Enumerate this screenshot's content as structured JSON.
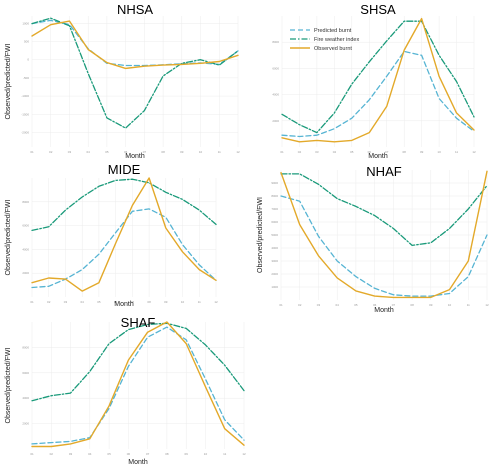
{
  "colors": {
    "predicted": "#56b4d3",
    "fwi": "#1a9a7a",
    "observed": "#e3a92a",
    "grid": "#ececec"
  },
  "chart_data": [
    {
      "type": "line",
      "title": "NHSA",
      "xlabel": "Month",
      "ylabel": "Observed/predicted/FWI",
      "x": [
        1,
        2,
        3,
        4,
        5,
        6,
        7,
        8,
        9,
        10,
        11,
        12
      ],
      "xticks": [
        "01",
        "02",
        "03",
        "04",
        "05",
        "06",
        "07",
        "08",
        "09",
        "10",
        "11",
        "12"
      ],
      "ylim": [
        -2400,
        1200
      ],
      "yticks": [
        "-2000",
        "-1500",
        "-1000",
        "-500",
        "0",
        "500",
        "1000"
      ],
      "grid": true,
      "series": [
        {
          "name": "Predicted burnt",
          "values": [
            990,
            1080,
            960,
            300,
            -100,
            -160,
            -160,
            -140,
            -110,
            -90,
            -130,
            240
          ]
        },
        {
          "name": "Fire weather index",
          "values": [
            990,
            1140,
            930,
            -380,
            -1600,
            -1880,
            -1400,
            -450,
            -100,
            0,
            -150,
            240
          ]
        },
        {
          "name": "Observed burnt",
          "values": [
            650,
            960,
            1060,
            280,
            -80,
            -240,
            -180,
            -150,
            -130,
            -100,
            -50,
            120
          ]
        }
      ]
    },
    {
      "type": "line",
      "title": "SHSA",
      "xlabel": "Month",
      "ylabel": "",
      "x": [
        1,
        2,
        3,
        4,
        5,
        6,
        7,
        8,
        9,
        10,
        11,
        12
      ],
      "xticks": [
        "01",
        "02",
        "03",
        "04",
        "05",
        "06",
        "07",
        "08",
        "09",
        "10",
        "11",
        "12"
      ],
      "ylim": [
        0,
        10000
      ],
      "yticks": [
        "2000",
        "4000",
        "6000",
        "8000"
      ],
      "grid": true,
      "legend": "top-left",
      "series": [
        {
          "name": "Predicted burnt",
          "values": [
            900,
            800,
            900,
            1400,
            2200,
            3600,
            5400,
            7300,
            7000,
            3700,
            2200,
            1200
          ]
        },
        {
          "name": "Fire weather index",
          "values": [
            2500,
            1700,
            1100,
            2600,
            4800,
            6500,
            8100,
            9600,
            9600,
            7000,
            5000,
            2300
          ]
        },
        {
          "name": "Observed burnt",
          "values": [
            700,
            400,
            500,
            400,
            500,
            1100,
            3100,
            7400,
            9800,
            5400,
            2600,
            1300
          ]
        }
      ]
    },
    {
      "type": "line",
      "title": "MIDE",
      "xlabel": "Month",
      "ylabel": "Observed/predicted/FWI",
      "x": [
        1,
        2,
        3,
        4,
        5,
        6,
        7,
        8,
        9,
        10,
        11,
        12
      ],
      "xticks": [
        "01",
        "02",
        "03",
        "04",
        "05",
        "06",
        "07",
        "08",
        "09",
        "10",
        "11",
        "12"
      ],
      "ylim": [
        0,
        10000
      ],
      "yticks": [
        "2000",
        "4000",
        "6000",
        "8000"
      ],
      "grid": true,
      "series": [
        {
          "name": "Predicted burnt",
          "values": [
            800,
            900,
            1500,
            2300,
            3600,
            5400,
            7200,
            7400,
            6700,
            4400,
            2700,
            1400
          ]
        },
        {
          "name": "Fire weather index",
          "values": [
            5600,
            5900,
            7300,
            8400,
            9300,
            9800,
            9900,
            9600,
            8800,
            8200,
            7300,
            6100
          ]
        },
        {
          "name": "Observed burnt",
          "values": [
            1200,
            1600,
            1500,
            500,
            1200,
            4500,
            7700,
            10000,
            5800,
            3800,
            2300,
            1400
          ]
        }
      ]
    },
    {
      "type": "line",
      "title": "NHAF",
      "xlabel": "Month",
      "ylabel": "Observed/predicted/FWI",
      "x": [
        1,
        2,
        3,
        4,
        5,
        6,
        7,
        8,
        9,
        10,
        11,
        12
      ],
      "xticks": [
        "01",
        "02",
        "03",
        "04",
        "05",
        "06",
        "07",
        "08",
        "09",
        "10",
        "11",
        "12"
      ],
      "ylim": [
        0,
        10000
      ],
      "yticks": [
        "1000",
        "2000",
        "3000",
        "4000",
        "5000",
        "6000",
        "7000",
        "8000",
        "9000"
      ],
      "grid": true,
      "series": [
        {
          "name": "Predicted burnt",
          "values": [
            8000,
            7600,
            4900,
            3000,
            1800,
            900,
            400,
            300,
            300,
            500,
            1800,
            5000
          ]
        },
        {
          "name": "Fire weather index",
          "values": [
            9700,
            9700,
            8900,
            7800,
            7200,
            6500,
            5500,
            4200,
            4400,
            5500,
            7000,
            8800
          ]
        },
        {
          "name": "Observed burnt",
          "values": [
            9800,
            5800,
            3400,
            1700,
            700,
            300,
            200,
            200,
            200,
            800,
            3000,
            9900
          ]
        }
      ]
    },
    {
      "type": "line",
      "title": "SHAF",
      "xlabel": "Month",
      "ylabel": "Observed/predicted/FWI",
      "x": [
        1,
        2,
        3,
        4,
        5,
        6,
        7,
        8,
        9,
        10,
        11,
        12
      ],
      "xticks": [
        "01",
        "02",
        "03",
        "04",
        "05",
        "06",
        "07",
        "08",
        "09",
        "10",
        "11",
        "12"
      ],
      "ylim": [
        0,
        10000
      ],
      "yticks": [
        "2000",
        "4000",
        "6000",
        "8000"
      ],
      "grid": true,
      "series": [
        {
          "name": "Predicted burnt",
          "values": [
            400,
            500,
            600,
            900,
            3200,
            6500,
            8800,
            9600,
            8600,
            5500,
            2300,
            700
          ]
        },
        {
          "name": "Fire weather index",
          "values": [
            3800,
            4200,
            4400,
            6100,
            8300,
            9400,
            9800,
            9900,
            9500,
            8200,
            6600,
            4600
          ]
        },
        {
          "name": "Observed burnt",
          "values": [
            200,
            200,
            400,
            800,
            3400,
            7000,
            9200,
            10000,
            8300,
            4900,
            1600,
            300
          ]
        }
      ]
    }
  ]
}
